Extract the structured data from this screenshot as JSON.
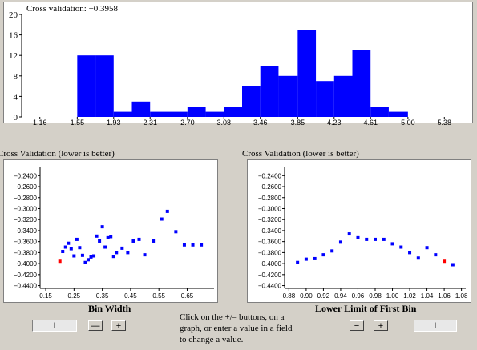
{
  "histogram": {
    "annotation": "Cross validation: −0.3958",
    "chart_data": {
      "type": "bar",
      "bins": [
        {
          "start": 1.55,
          "end": 1.74,
          "count": 12
        },
        {
          "start": 1.74,
          "end": 1.93,
          "count": 12
        },
        {
          "start": 1.93,
          "end": 2.12,
          "count": 1
        },
        {
          "start": 2.12,
          "end": 2.31,
          "count": 3
        },
        {
          "start": 2.31,
          "end": 2.5,
          "count": 1
        },
        {
          "start": 2.5,
          "end": 2.7,
          "count": 1
        },
        {
          "start": 2.7,
          "end": 2.89,
          "count": 2
        },
        {
          "start": 2.89,
          "end": 3.08,
          "count": 1
        },
        {
          "start": 3.08,
          "end": 3.27,
          "count": 2
        },
        {
          "start": 3.27,
          "end": 3.46,
          "count": 6
        },
        {
          "start": 3.46,
          "end": 3.65,
          "count": 10
        },
        {
          "start": 3.65,
          "end": 3.85,
          "count": 8
        },
        {
          "start": 3.85,
          "end": 4.04,
          "count": 17
        },
        {
          "start": 4.04,
          "end": 4.23,
          "count": 7
        },
        {
          "start": 4.23,
          "end": 4.42,
          "count": 8
        },
        {
          "start": 4.42,
          "end": 4.61,
          "count": 13
        },
        {
          "start": 4.61,
          "end": 4.8,
          "count": 2
        },
        {
          "start": 4.8,
          "end": 5.0,
          "count": 1
        }
      ],
      "xlim": [
        0.97,
        5.57
      ],
      "ylim": [
        0,
        20
      ],
      "x_ticks": [
        "1.16",
        "1.55",
        "1.93",
        "2.31",
        "2.70",
        "3.08",
        "3.46",
        "3.85",
        "4.23",
        "4.61",
        "5.00",
        "5.38"
      ],
      "x_tick_values": [
        1.16,
        1.55,
        1.93,
        2.31,
        2.7,
        3.08,
        3.46,
        3.85,
        4.23,
        4.61,
        5.0,
        5.38
      ],
      "y_ticks": [
        0,
        4,
        8,
        12,
        16,
        20
      ],
      "bar_color": "#0000ff"
    }
  },
  "bin_width_plot": {
    "title": "Cross Validation (lower is better)",
    "xlabel": "Bin Width",
    "chart_data": {
      "type": "scatter",
      "x": [
        0.2,
        0.21,
        0.22,
        0.23,
        0.24,
        0.25,
        0.26,
        0.27,
        0.28,
        0.29,
        0.3,
        0.31,
        0.32,
        0.33,
        0.34,
        0.35,
        0.36,
        0.37,
        0.38,
        0.39,
        0.4,
        0.42,
        0.44,
        0.46,
        0.48,
        0.5,
        0.53,
        0.56,
        0.58,
        0.61,
        0.64,
        0.67,
        0.7
      ],
      "y": [
        -0.3958,
        -0.378,
        -0.37,
        -0.363,
        -0.373,
        -0.386,
        -0.356,
        -0.371,
        -0.385,
        -0.398,
        -0.393,
        -0.388,
        -0.386,
        -0.35,
        -0.359,
        -0.333,
        -0.37,
        -0.353,
        -0.351,
        -0.387,
        -0.38,
        -0.372,
        -0.38,
        -0.359,
        -0.356,
        -0.384,
        -0.359,
        -0.319,
        -0.305,
        -0.342,
        -0.366,
        -0.366,
        -0.366
      ],
      "highlight_index": 0,
      "xlim": [
        0.13,
        0.745
      ],
      "ylim": [
        -0.445,
        -0.225
      ],
      "x_ticks": [
        "0.15",
        "0.25",
        "0.35",
        "0.45",
        "0.55",
        "0.65"
      ],
      "x_tick_values": [
        0.15,
        0.25,
        0.35,
        0.45,
        0.55,
        0.65
      ],
      "y_ticks": [
        "−0.2400",
        "−0.2600",
        "−0.2800",
        "−0.3000",
        "−0.3200",
        "−0.3400",
        "−0.3600",
        "−0.3800",
        "−0.4000",
        "−0.4200",
        "−0.4400"
      ],
      "y_tick_values": [
        -0.24,
        -0.26,
        -0.28,
        -0.3,
        -0.32,
        -0.34,
        -0.36,
        -0.38,
        -0.4,
        -0.42,
        -0.44
      ],
      "point_color": "#0000ff",
      "highlight_color": "#ff0000"
    },
    "field_value": "",
    "minus_label": "—",
    "plus_label": "+"
  },
  "first_bin_plot": {
    "title": "Cross Validation (lower is better)",
    "xlabel": "Lower Limit of First Bin",
    "chart_data": {
      "type": "scatter",
      "x": [
        0.89,
        0.9,
        0.91,
        0.92,
        0.93,
        0.94,
        0.95,
        0.96,
        0.97,
        0.98,
        0.99,
        1.0,
        1.01,
        1.02,
        1.03,
        1.04,
        1.05,
        1.06,
        1.07
      ],
      "y": [
        -0.398,
        -0.392,
        -0.391,
        -0.384,
        -0.377,
        -0.361,
        -0.346,
        -0.353,
        -0.356,
        -0.356,
        -0.356,
        -0.364,
        -0.37,
        -0.38,
        -0.39,
        -0.371,
        -0.384,
        -0.3958,
        -0.402
      ],
      "highlight_index": 17,
      "xlim": [
        0.875,
        1.085
      ],
      "ylim": [
        -0.445,
        -0.225
      ],
      "x_ticks": [
        "0.88",
        "0.90",
        "0.92",
        "0.94",
        "0.96",
        "0.98",
        "1.00",
        "1.02",
        "1.04",
        "1.06",
        "1.08"
      ],
      "x_tick_values": [
        0.88,
        0.9,
        0.92,
        0.94,
        0.96,
        0.98,
        1.0,
        1.02,
        1.04,
        1.06,
        1.08
      ],
      "y_ticks": [
        "−0.2400",
        "−0.2600",
        "−0.2800",
        "−0.3000",
        "−0.3200",
        "−0.3400",
        "−0.3600",
        "−0.3800",
        "−0.4000",
        "−0.4200",
        "−0.4400"
      ],
      "y_tick_values": [
        -0.24,
        -0.26,
        -0.28,
        -0.3,
        -0.32,
        -0.34,
        -0.36,
        -0.38,
        -0.4,
        -0.42,
        -0.44
      ],
      "point_color": "#0000ff",
      "highlight_color": "#ff0000"
    },
    "minus_label": "−",
    "plus_label": "+",
    "field_value": ""
  },
  "help_text": "Click on the +/– buttons, on a graph, or enter a value in a field to change a value."
}
